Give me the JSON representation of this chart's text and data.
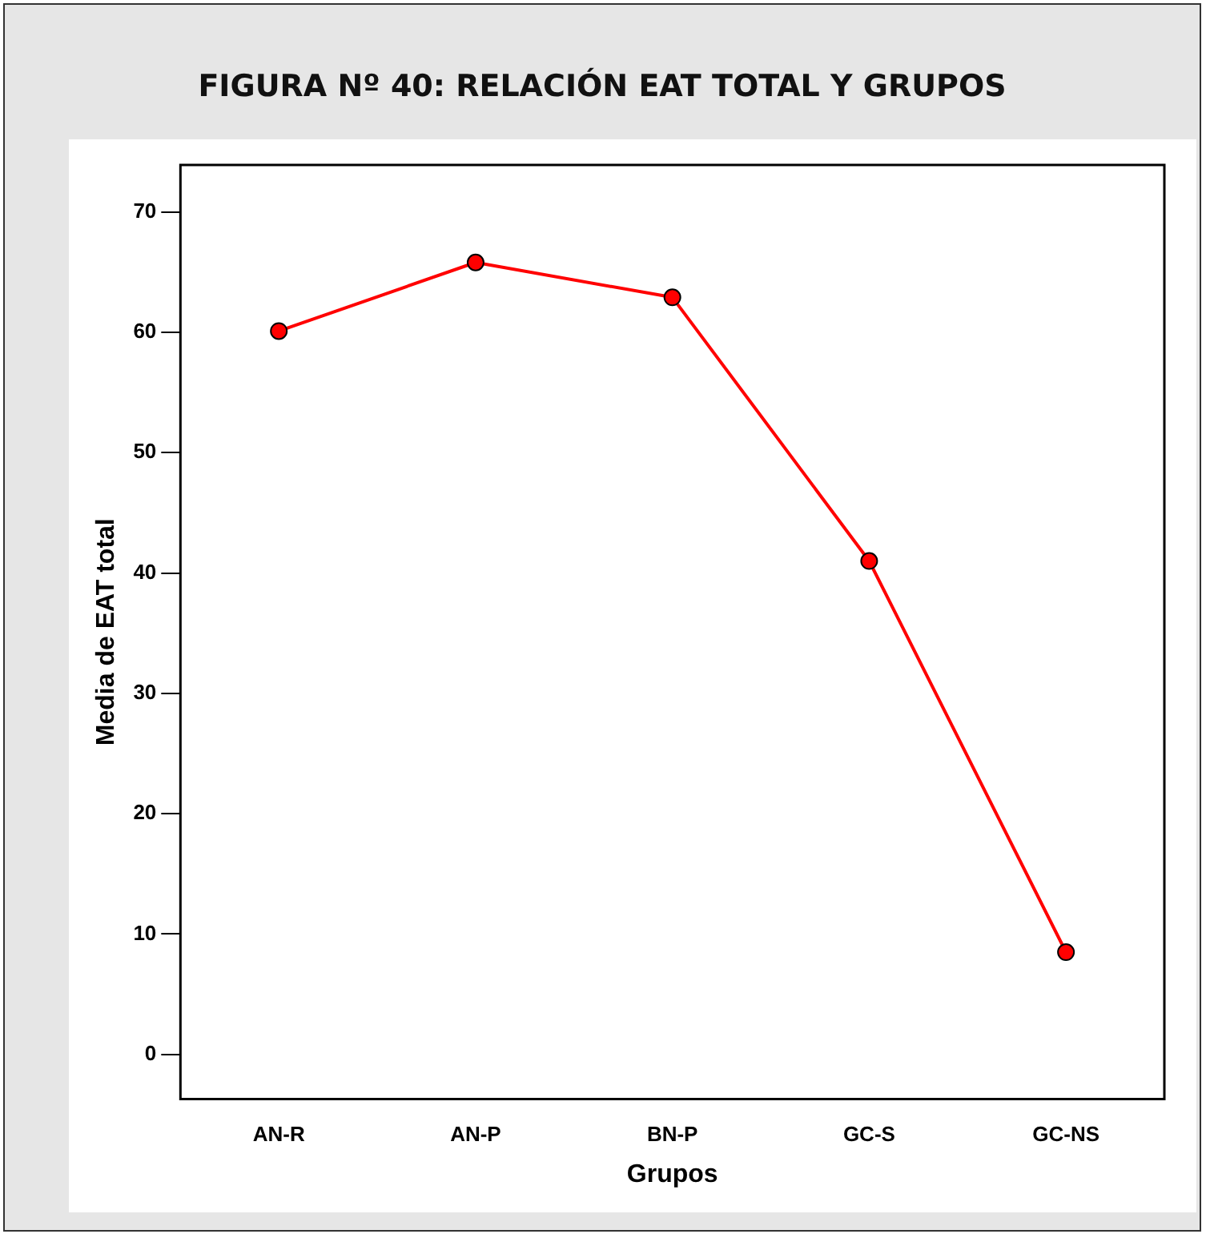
{
  "chart_data": {
    "type": "line",
    "title": "FIGURA  Nº 40: RELACIÓN EAT TOTAL Y GRUPOS",
    "xlabel": "Grupos",
    "ylabel": "Media de EAT total",
    "categories": [
      "AN-R",
      "AN-P",
      "BN-P",
      "GC-S",
      "GC-NS"
    ],
    "series": [
      {
        "color": "#ff0000",
        "values": [
          60.1,
          65.8,
          62.9,
          41.0,
          8.5
        ]
      }
    ],
    "ylim": [
      -3.7,
      73.9
    ],
    "yticks": [
      0,
      10,
      20,
      30,
      40,
      50,
      60,
      70
    ],
    "grid": false,
    "legend": false,
    "marker": "circle",
    "line_style": "solid"
  }
}
